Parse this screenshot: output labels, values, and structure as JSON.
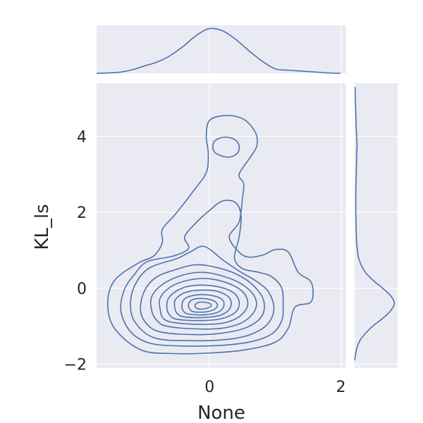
{
  "chart_data": {
    "type": "joint-kde",
    "title": "",
    "xlabel": "None",
    "ylabel": "KL_ls",
    "xlim": [
      -1.72,
      2.08
    ],
    "ylim": [
      -2.1,
      5.4
    ],
    "xticks": [
      0,
      2
    ],
    "xtick_labels": [
      "0",
      "2"
    ],
    "yticks": [
      -2,
      0,
      2,
      4
    ],
    "ytick_labels": [
      "−2",
      "0",
      "2",
      "4"
    ],
    "grid": true,
    "series_color": "#4c72b0",
    "panel_color": "#eaeaf2",
    "contour_levels": [
      {
        "name": "level-1",
        "points": [
          [
            -1.05,
            -1.62
          ],
          [
            -0.55,
            -1.72
          ],
          [
            0.05,
            -1.7
          ],
          [
            0.55,
            -1.62
          ],
          [
            1.0,
            -1.42
          ],
          [
            1.2,
            -1.05
          ],
          [
            1.3,
            -0.5
          ],
          [
            1.55,
            -0.35
          ],
          [
            1.55,
            0.15
          ],
          [
            1.35,
            0.42
          ],
          [
            1.2,
            0.95
          ],
          [
            1.0,
            1.02
          ],
          [
            0.82,
            0.88
          ],
          [
            0.6,
            0.82
          ],
          [
            0.45,
            0.95
          ],
          [
            0.3,
            1.35
          ],
          [
            0.45,
            1.75
          ],
          [
            0.5,
            2.35
          ],
          [
            0.52,
            2.75
          ],
          [
            0.45,
            3.0
          ],
          [
            0.62,
            3.45
          ],
          [
            0.72,
            3.75
          ],
          [
            0.7,
            4.1
          ],
          [
            0.52,
            4.45
          ],
          [
            0.25,
            4.55
          ],
          [
            0.0,
            4.42
          ],
          [
            -0.05,
            4.0
          ],
          [
            -0.02,
            3.55
          ],
          [
            -0.05,
            3.05
          ],
          [
            -0.25,
            2.55
          ],
          [
            -0.52,
            1.95
          ],
          [
            -0.72,
            1.55
          ],
          [
            -0.72,
            1.2
          ],
          [
            -0.85,
            0.85
          ],
          [
            -1.1,
            0.65
          ],
          [
            -1.45,
            0.2
          ],
          [
            -1.55,
            -0.4
          ],
          [
            -1.45,
            -1.05
          ]
        ]
      },
      {
        "name": "level-2",
        "points": [
          [
            -0.9,
            -1.45
          ],
          [
            -0.4,
            -1.52
          ],
          [
            0.2,
            -1.5
          ],
          [
            0.65,
            -1.4
          ],
          [
            0.95,
            -1.2
          ],
          [
            1.1,
            -0.85
          ],
          [
            1.12,
            -0.45
          ],
          [
            1.1,
            0.0
          ],
          [
            0.95,
            0.3
          ],
          [
            0.75,
            0.42
          ],
          [
            0.5,
            0.52
          ],
          [
            0.38,
            0.8
          ],
          [
            0.45,
            1.35
          ],
          [
            0.48,
            1.9
          ],
          [
            0.4,
            2.25
          ],
          [
            0.2,
            2.3
          ],
          [
            0.0,
            2.05
          ],
          [
            -0.22,
            1.7
          ],
          [
            -0.38,
            1.35
          ],
          [
            -0.32,
            1.05
          ],
          [
            -0.55,
            0.85
          ],
          [
            -0.95,
            0.7
          ],
          [
            -1.15,
            0.35
          ],
          [
            -1.3,
            -0.05
          ],
          [
            -1.35,
            -0.6
          ],
          [
            -1.2,
            -1.15
          ]
        ]
      },
      {
        "name": "level-3",
        "points": [
          [
            -0.85,
            -1.3
          ],
          [
            -0.3,
            -1.38
          ],
          [
            0.25,
            -1.35
          ],
          [
            0.62,
            -1.22
          ],
          [
            0.88,
            -0.95
          ],
          [
            0.98,
            -0.55
          ],
          [
            0.9,
            -0.1
          ],
          [
            0.7,
            0.2
          ],
          [
            0.45,
            0.45
          ],
          [
            0.2,
            0.75
          ],
          [
            -0.08,
            1.1
          ],
          [
            -0.3,
            0.95
          ],
          [
            -0.5,
            0.78
          ],
          [
            -0.9,
            0.55
          ],
          [
            -1.1,
            0.2
          ],
          [
            -1.2,
            -0.3
          ],
          [
            -1.15,
            -0.85
          ]
        ]
      },
      {
        "name": "level-4",
        "points": [
          [
            -0.75,
            -1.15
          ],
          [
            -0.25,
            -1.22
          ],
          [
            0.2,
            -1.18
          ],
          [
            0.58,
            -1.02
          ],
          [
            0.8,
            -0.72
          ],
          [
            0.82,
            -0.3
          ],
          [
            0.65,
            0.1
          ],
          [
            0.4,
            0.38
          ],
          [
            0.1,
            0.55
          ],
          [
            -0.2,
            0.62
          ],
          [
            -0.5,
            0.5
          ],
          [
            -0.82,
            0.28
          ],
          [
            -1.0,
            -0.1
          ],
          [
            -1.05,
            -0.6
          ],
          [
            -0.95,
            -0.95
          ]
        ]
      },
      {
        "name": "level-5",
        "points": [
          [
            -0.65,
            -1.0
          ],
          [
            -0.2,
            -1.07
          ],
          [
            0.2,
            -1.05
          ],
          [
            0.52,
            -0.88
          ],
          [
            0.7,
            -0.55
          ],
          [
            0.68,
            -0.2
          ],
          [
            0.48,
            0.12
          ],
          [
            0.2,
            0.32
          ],
          [
            -0.1,
            0.42
          ],
          [
            -0.4,
            0.35
          ],
          [
            -0.7,
            0.12
          ],
          [
            -0.88,
            -0.22
          ],
          [
            -0.88,
            -0.6
          ],
          [
            -0.8,
            -0.85
          ]
        ]
      },
      {
        "name": "level-6",
        "points": [
          [
            -0.55,
            -0.9
          ],
          [
            -0.15,
            -0.95
          ],
          [
            0.2,
            -0.92
          ],
          [
            0.45,
            -0.75
          ],
          [
            0.58,
            -0.45
          ],
          [
            0.52,
            -0.12
          ],
          [
            0.3,
            0.12
          ],
          [
            0.0,
            0.25
          ],
          [
            -0.3,
            0.22
          ],
          [
            -0.58,
            0.05
          ],
          [
            -0.75,
            -0.25
          ],
          [
            -0.75,
            -0.58
          ],
          [
            -0.7,
            -0.8
          ]
        ]
      },
      {
        "name": "level-7",
        "points": [
          [
            -0.48,
            -0.82
          ],
          [
            -0.12,
            -0.85
          ],
          [
            0.18,
            -0.8
          ],
          [
            0.4,
            -0.62
          ],
          [
            0.45,
            -0.35
          ],
          [
            0.35,
            -0.1
          ],
          [
            0.1,
            0.05
          ],
          [
            -0.2,
            0.08
          ],
          [
            -0.45,
            -0.02
          ],
          [
            -0.62,
            -0.25
          ],
          [
            -0.65,
            -0.52
          ],
          [
            -0.6,
            -0.72
          ]
        ]
      },
      {
        "name": "level-8",
        "points": [
          [
            -0.4,
            -0.75
          ],
          [
            -0.1,
            -0.77
          ],
          [
            0.18,
            -0.7
          ],
          [
            0.32,
            -0.5
          ],
          [
            0.3,
            -0.25
          ],
          [
            0.12,
            -0.08
          ],
          [
            -0.15,
            -0.05
          ],
          [
            -0.38,
            -0.12
          ],
          [
            -0.52,
            -0.3
          ],
          [
            -0.53,
            -0.5
          ],
          [
            -0.5,
            -0.65
          ]
        ]
      },
      {
        "name": "level-9",
        "points": [
          [
            -0.32,
            -0.68
          ],
          [
            -0.08,
            -0.7
          ],
          [
            0.14,
            -0.62
          ],
          [
            0.22,
            -0.45
          ],
          [
            0.18,
            -0.28
          ],
          [
            0.0,
            -0.18
          ],
          [
            -0.22,
            -0.18
          ],
          [
            -0.38,
            -0.28
          ],
          [
            -0.42,
            -0.45
          ],
          [
            -0.4,
            -0.6
          ]
        ]
      },
      {
        "name": "level-10",
        "points": [
          [
            -0.24,
            -0.62
          ],
          [
            -0.05,
            -0.62
          ],
          [
            0.08,
            -0.55
          ],
          [
            0.12,
            -0.43
          ],
          [
            0.05,
            -0.32
          ],
          [
            -0.1,
            -0.27
          ],
          [
            -0.26,
            -0.3
          ],
          [
            -0.32,
            -0.42
          ],
          [
            -0.3,
            -0.55
          ]
        ]
      },
      {
        "name": "level-11",
        "points": [
          [
            -0.12,
            -0.55
          ],
          [
            0.0,
            -0.5
          ],
          [
            0.02,
            -0.42
          ],
          [
            -0.06,
            -0.37
          ],
          [
            -0.16,
            -0.37
          ],
          [
            -0.22,
            -0.44
          ],
          [
            -0.2,
            -0.52
          ]
        ]
      },
      {
        "name": "upper-mode-inner",
        "points": [
          [
            0.1,
            3.55
          ],
          [
            0.28,
            3.45
          ],
          [
            0.42,
            3.55
          ],
          [
            0.45,
            3.75
          ],
          [
            0.38,
            3.92
          ],
          [
            0.22,
            3.98
          ],
          [
            0.08,
            3.88
          ],
          [
            0.05,
            3.7
          ]
        ]
      }
    ],
    "marginal_x": {
      "label": "x density",
      "x": [
        -1.72,
        -1.4,
        -1.2,
        -1.0,
        -0.8,
        -0.6,
        -0.4,
        -0.2,
        0.0,
        0.2,
        0.4,
        0.6,
        0.8,
        1.0,
        1.2,
        1.4,
        1.6,
        1.8,
        2.0
      ],
      "density": [
        0.0,
        0.02,
        0.07,
        0.16,
        0.25,
        0.39,
        0.6,
        0.84,
        0.99,
        0.94,
        0.75,
        0.5,
        0.27,
        0.1,
        0.07,
        0.05,
        0.03,
        0.01,
        0.0
      ]
    },
    "marginal_y": {
      "label": "y density",
      "y": [
        -1.9,
        -1.6,
        -1.4,
        -1.2,
        -1.0,
        -0.8,
        -0.6,
        -0.4,
        -0.2,
        0.0,
        0.2,
        0.4,
        0.6,
        0.8,
        1.0,
        1.2,
        1.5,
        2.0,
        2.5,
        3.0,
        3.5,
        3.8,
        4.2,
        4.6,
        5.0,
        5.3
      ],
      "density": [
        0.0,
        0.05,
        0.12,
        0.26,
        0.45,
        0.69,
        0.89,
        0.99,
        0.9,
        0.7,
        0.47,
        0.28,
        0.17,
        0.1,
        0.07,
        0.05,
        0.04,
        0.03,
        0.03,
        0.04,
        0.05,
        0.06,
        0.04,
        0.03,
        0.02,
        0.01
      ]
    }
  }
}
